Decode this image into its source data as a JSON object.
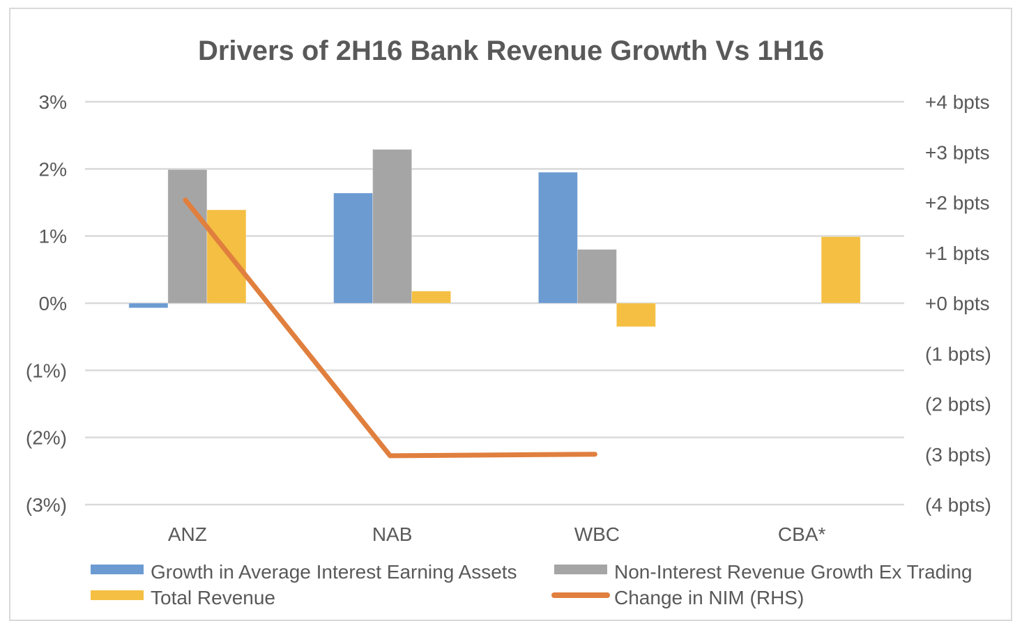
{
  "chart_data": {
    "type": "bar",
    "title": "Drivers of 2H16 Bank Revenue Growth Vs 1H16",
    "xlabel": "",
    "ylabel": "",
    "categories": [
      "ANZ",
      "NAB",
      "WBC",
      "CBA*"
    ],
    "grid": true,
    "legend_position": "bottom",
    "y_left": {
      "ylim": [
        -3,
        3
      ],
      "unit": "%",
      "ticks": [
        3,
        2,
        1,
        0,
        -1,
        -2,
        -3
      ],
      "tick_labels": [
        "3%",
        "2%",
        "1%",
        "0%",
        "(1%)",
        "(2%)",
        "(3%)"
      ]
    },
    "y_right": {
      "ylim": [
        -4,
        4
      ],
      "unit": "bpts",
      "ticks": [
        4,
        3,
        2,
        1,
        0,
        -1,
        -2,
        -3,
        -4
      ],
      "tick_labels": [
        "+4 bpts",
        "+3 bpts",
        "+2 bpts",
        "+1 bpts",
        "+0 bpts",
        "(1 bpts)",
        "(2 bpts)",
        "(3 bpts)",
        "(4 bpts)"
      ]
    },
    "series": [
      {
        "name": "Growth in Average Interest Earning Assets",
        "type": "bar",
        "axis": "left",
        "color": "#6b9bd1",
        "values": [
          -0.07,
          1.64,
          1.95,
          null
        ]
      },
      {
        "name": "Non-Interest Revenue Growth Ex Trading",
        "type": "bar",
        "axis": "left",
        "color": "#a5a5a5",
        "values": [
          1.99,
          2.29,
          0.8,
          null
        ]
      },
      {
        "name": "Total Revenue",
        "type": "bar",
        "axis": "left",
        "color": "#f4bf42",
        "values": [
          1.39,
          0.18,
          -0.35,
          0.99
        ]
      },
      {
        "name": "Change in NIM (RHS)",
        "type": "line",
        "axis": "right",
        "color": "#e07f3e",
        "values": [
          2.05,
          -3.03,
          -3.0,
          null
        ]
      }
    ]
  }
}
